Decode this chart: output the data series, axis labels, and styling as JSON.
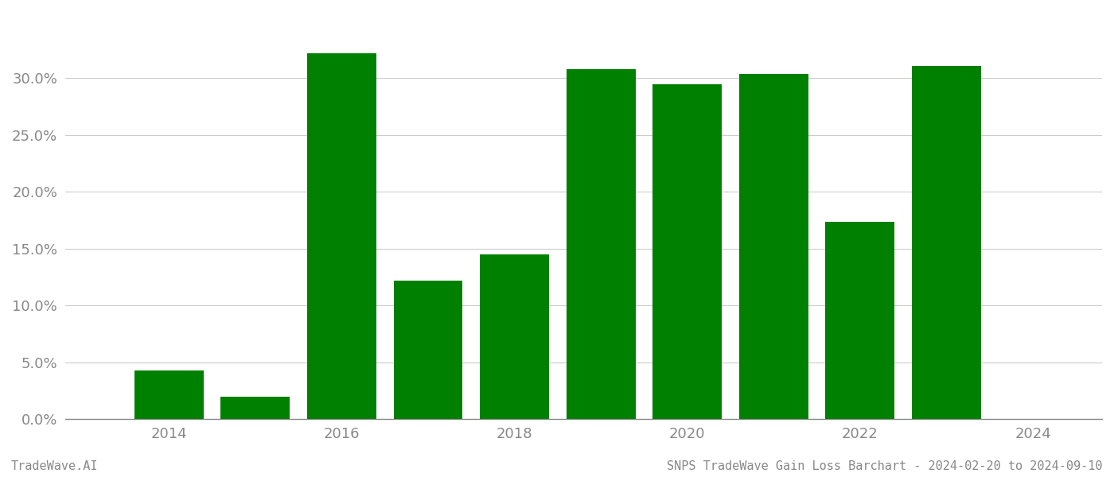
{
  "years": [
    2014,
    2015,
    2016,
    2017,
    2018,
    2019,
    2020,
    2021,
    2022,
    2023
  ],
  "values": [
    0.043,
    0.02,
    0.322,
    0.122,
    0.145,
    0.308,
    0.295,
    0.304,
    0.174,
    0.311
  ],
  "bar_color": "#008000",
  "background_color": "#ffffff",
  "grid_color": "#cccccc",
  "axis_color": "#888888",
  "tick_color": "#888888",
  "ylim": [
    0,
    0.35
  ],
  "yticks": [
    0.0,
    0.05,
    0.1,
    0.15,
    0.2,
    0.25,
    0.3
  ],
  "tick_fontsize": 13,
  "footer_left": "TradeWave.AI",
  "footer_right": "SNPS TradeWave Gain Loss Barchart - 2024-02-20 to 2024-09-10",
  "footer_fontsize": 11,
  "bar_width": 0.8,
  "xlim": [
    2012.8,
    2024.8
  ],
  "xtick_positions": [
    2014,
    2016,
    2018,
    2020,
    2022,
    2024
  ],
  "xtick_labels": [
    "2014",
    "2016",
    "2018",
    "2020",
    "2022",
    "2024"
  ]
}
